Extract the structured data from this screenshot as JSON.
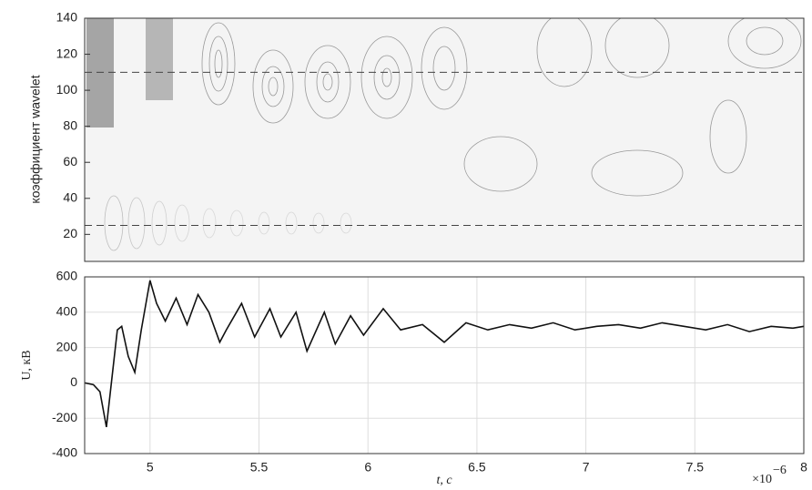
{
  "chart_data": [
    {
      "type": "scalogram",
      "ylabel": "коэффициент wavelet",
      "xlim": [
        4.7,
        8
      ],
      "ylim": [
        5,
        140
      ],
      "yticks": [
        20,
        40,
        60,
        80,
        100,
        120,
        140
      ],
      "hlines": [
        110,
        25
      ]
    },
    {
      "type": "line",
      "xlabel": "t, c",
      "ylabel": "U, кВ",
      "x_scale_base": "×10",
      "x_scale_exponent": "−6",
      "color": "#111111",
      "grid": true,
      "xlim": [
        4.7,
        8
      ],
      "ylim": [
        -400,
        600
      ],
      "xticks": [
        5,
        5.5,
        6,
        6.5,
        7,
        7.5,
        8
      ],
      "yticks": [
        -400,
        -200,
        0,
        200,
        400,
        600
      ],
      "x": [
        4.7,
        4.74,
        4.77,
        4.8,
        4.83,
        4.85,
        4.87,
        4.9,
        4.93,
        4.96,
        5.0,
        5.03,
        5.07,
        5.12,
        5.17,
        5.22,
        5.27,
        5.32,
        5.35,
        5.42,
        5.48,
        5.55,
        5.6,
        5.67,
        5.72,
        5.8,
        5.85,
        5.92,
        5.98,
        6.07,
        6.15,
        6.25,
        6.35,
        6.45,
        6.55,
        6.65,
        6.75,
        6.85,
        6.95,
        7.05,
        7.15,
        7.25,
        7.35,
        7.45,
        7.55,
        7.65,
        7.75,
        7.85,
        7.95,
        8.0
      ],
      "values": [
        0,
        -10,
        -50,
        -250,
        80,
        300,
        320,
        150,
        60,
        300,
        580,
        450,
        350,
        480,
        330,
        500,
        400,
        230,
        300,
        450,
        260,
        420,
        260,
        400,
        180,
        400,
        220,
        380,
        270,
        420,
        300,
        330,
        230,
        340,
        300,
        330,
        310,
        340,
        300,
        320,
        330,
        310,
        340,
        320,
        300,
        330,
        290,
        320,
        310,
        320
      ]
    }
  ]
}
